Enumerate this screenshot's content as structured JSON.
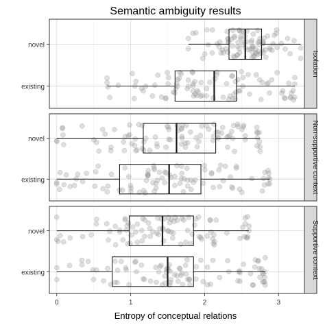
{
  "chart_data": {
    "type": "boxplot",
    "title": "Semantic ambiguity results",
    "xlabel": "Entropy of conceptual relations",
    "ylabel": "",
    "xlim": [
      -0.1,
      3.35
    ],
    "xticks": [
      "0",
      "1",
      "2",
      "3"
    ],
    "xtick_values": [
      0,
      1,
      2,
      3
    ],
    "grid": true,
    "categories": [
      "novel",
      "existing"
    ],
    "facets": [
      {
        "name": "Isolation",
        "groups": [
          {
            "category": "novel",
            "min": 1.78,
            "q1": 2.33,
            "median": 2.55,
            "q3": 2.77,
            "max": 3.3
          },
          {
            "category": "existing",
            "min": 0.68,
            "q1": 1.6,
            "median": 2.13,
            "q3": 2.43,
            "max": 3.22
          }
        ]
      },
      {
        "name": "Non-supportive context",
        "groups": [
          {
            "category": "novel",
            "min": 0.0,
            "q1": 1.17,
            "median": 1.62,
            "q3": 2.15,
            "max": 2.75
          },
          {
            "category": "existing",
            "min": 0.0,
            "q1": 0.85,
            "median": 1.52,
            "q3": 1.95,
            "max": 2.88
          }
        ]
      },
      {
        "name": "Supportive context",
        "groups": [
          {
            "category": "novel",
            "min": 0.0,
            "q1": 0.98,
            "median": 1.43,
            "q3": 1.85,
            "max": 2.6
          },
          {
            "category": "existing",
            "min": 0.0,
            "q1": 0.75,
            "median": 1.5,
            "q3": 1.85,
            "max": 2.82
          }
        ]
      }
    ]
  },
  "colors": {
    "panel_border": "#333333",
    "grid_major": "#dcdcdc",
    "grid_minor": "#efefef",
    "strip_fill": "#d9d9d9",
    "box_stroke": "#1a1a1a",
    "point_fill": "#999999"
  }
}
